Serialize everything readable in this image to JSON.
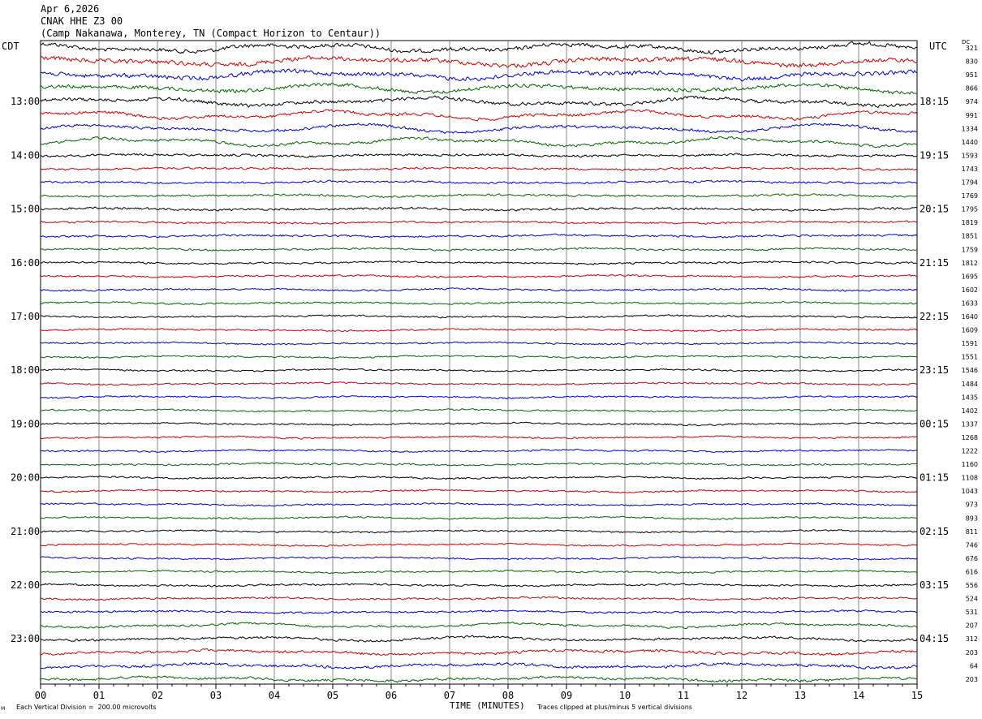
{
  "header": {
    "date": "Apr 6,2026",
    "station": "CNAK HHE Z3 00",
    "location": "(Camp Nakanawa, Monterey, TN (Compact Horizon to Centaur))"
  },
  "left_timezone": "CDT",
  "right_timezone": "UTC",
  "dc_label": "DC",
  "footer": {
    "scale_note": "Each Vertical Division =  200.00 microvolts",
    "xlabel": "TIME (MINUTES)",
    "clip_note": "Traces clipped at plus/minus 5 vertical divisions",
    "corner_mark": "M"
  },
  "colors": {
    "cycle": [
      "#000000",
      "#cc0000",
      "#0000cc",
      "#006600"
    ],
    "grid": "#888888"
  },
  "chart_data": {
    "type": "line",
    "title": "CNAK HHE Z3 00",
    "xlabel": "TIME (MINUTES)",
    "xlim": [
      0,
      15
    ],
    "x_ticks": [
      "00",
      "01",
      "02",
      "03",
      "04",
      "05",
      "06",
      "07",
      "08",
      "09",
      "10",
      "11",
      "12",
      "13",
      "14",
      "15"
    ],
    "rows": 48,
    "minutes_per_row": 15,
    "left_hour_labels": [
      {
        "row": 4,
        "label": "13:00"
      },
      {
        "row": 8,
        "label": "14:00"
      },
      {
        "row": 12,
        "label": "15:00"
      },
      {
        "row": 16,
        "label": "16:00"
      },
      {
        "row": 20,
        "label": "17:00"
      },
      {
        "row": 24,
        "label": "18:00"
      },
      {
        "row": 28,
        "label": "19:00"
      },
      {
        "row": 32,
        "label": "20:00"
      },
      {
        "row": 36,
        "label": "21:00"
      },
      {
        "row": 40,
        "label": "22:00"
      },
      {
        "row": 44,
        "label": "23:00"
      }
    ],
    "right_hour_labels": [
      {
        "row": 4,
        "label": "18:15"
      },
      {
        "row": 8,
        "label": "19:15"
      },
      {
        "row": 12,
        "label": "20:15"
      },
      {
        "row": 16,
        "label": "21:15"
      },
      {
        "row": 20,
        "label": "22:15"
      },
      {
        "row": 24,
        "label": "23:15"
      },
      {
        "row": 28,
        "label": "00:15"
      },
      {
        "row": 32,
        "label": "01:15"
      },
      {
        "row": 36,
        "label": "02:15"
      },
      {
        "row": 40,
        "label": "03:15"
      },
      {
        "row": 44,
        "label": "04:15"
      }
    ],
    "dc_offsets": [
      "321",
      "830",
      "951",
      "866",
      "974",
      "991",
      "1334",
      "1440",
      "1593",
      "1743",
      "1794",
      "1769",
      "1795",
      "1819",
      "1851",
      "1759",
      "1812",
      "1695",
      "1602",
      "1633",
      "1640",
      "1609",
      "1591",
      "1551",
      "1546",
      "1484",
      "1435",
      "1402",
      "1337",
      "1268",
      "1222",
      "1160",
      "1108",
      "1043",
      "973",
      "893",
      "811",
      "746",
      "676",
      "616",
      "556",
      "524",
      "531",
      "207",
      "312",
      "203",
      "64",
      "203"
    ],
    "noise_amplitude": [
      3.2,
      3.6,
      3.4,
      3.0,
      2.8,
      2.4,
      2.2,
      2.2,
      1.8,
      1.7,
      1.6,
      1.6,
      1.8,
      1.6,
      1.6,
      1.5,
      1.4,
      1.4,
      1.4,
      1.4,
      1.4,
      1.4,
      1.3,
      1.3,
      1.3,
      1.3,
      1.3,
      1.3,
      1.3,
      1.3,
      1.3,
      1.3,
      1.3,
      1.3,
      1.3,
      1.3,
      1.3,
      1.3,
      1.3,
      1.3,
      1.4,
      1.5,
      1.6,
      1.7,
      1.9,
      2.1,
      2.2,
      2.0
    ]
  }
}
